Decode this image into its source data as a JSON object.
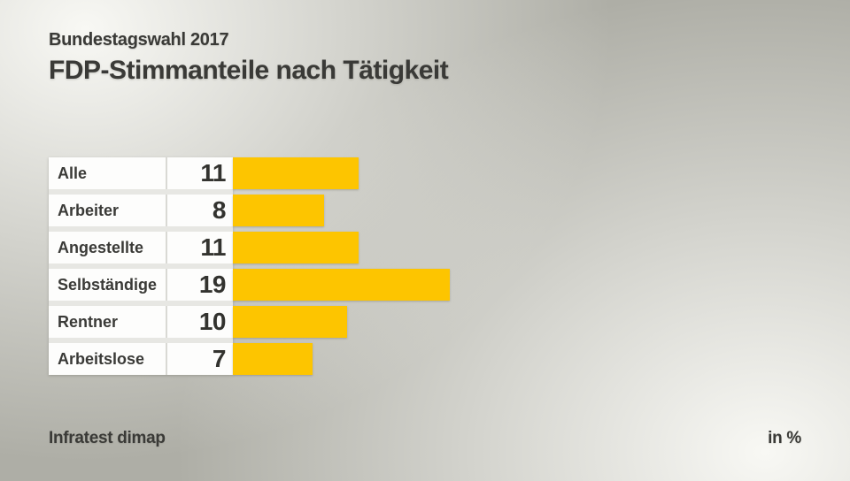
{
  "header": {
    "kicker": "Bundestagswahl 2017",
    "title": "FDP-Stimmanteile nach Tätigkeit"
  },
  "footer": {
    "source": "Infratest dimap",
    "unit": "in %"
  },
  "chart_data": {
    "type": "bar",
    "orientation": "horizontal",
    "title": "FDP-Stimmanteile nach Tätigkeit",
    "subtitle": "Bundestagswahl 2017",
    "categories": [
      "Alle",
      "Arbeiter",
      "Angestellte",
      "Selbständige",
      "Rentner",
      "Arbeitslose"
    ],
    "values": [
      11,
      8,
      11,
      19,
      10,
      7
    ],
    "unit": "in %",
    "source": "Infratest dimap",
    "bar_color": "#fdc500",
    "xlim": [
      0,
      19
    ],
    "grid": false,
    "legend": false
  }
}
